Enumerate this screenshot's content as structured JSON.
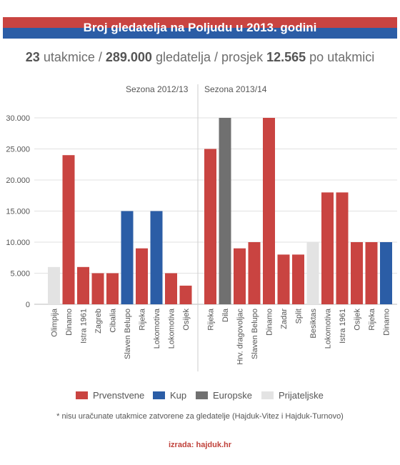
{
  "header": {
    "title": "Broj gledatelja na Poljudu u 2013. godini",
    "stripe_red": "#c94441",
    "stripe_blue": "#2b5da6"
  },
  "summary": {
    "matches": "23",
    "matches_label": "utakmice",
    "spectators": "289.000",
    "spectators_label": "gledatelja",
    "average_label": "prosjek",
    "average": "12.565",
    "per_match_label": "po utakmici"
  },
  "chart_data": {
    "type": "bar",
    "ylim": [
      0,
      30000
    ],
    "y_ticks": [
      "0",
      "5.000",
      "10.000",
      "15.000",
      "20.000",
      "25.000",
      "30.000"
    ],
    "y_tick_values": [
      0,
      5000,
      10000,
      15000,
      20000,
      25000,
      30000
    ],
    "grid": true,
    "seasons": [
      {
        "label": "Sezona 2012/13",
        "bars": [
          {
            "category": "Olimpija",
            "value": 6000,
            "type": "Prijateljske"
          },
          {
            "category": "Dinamo",
            "value": 24000,
            "type": "Prvenstvene"
          },
          {
            "category": "Istra 1961",
            "value": 6000,
            "type": "Prvenstvene"
          },
          {
            "category": "Zagreb",
            "value": 5000,
            "type": "Prvenstvene"
          },
          {
            "category": "Cibalia",
            "value": 5000,
            "type": "Prvenstvene"
          },
          {
            "category": "Slaven Belupo",
            "value": 15000,
            "type": "Kup"
          },
          {
            "category": "Rijeka",
            "value": 9000,
            "type": "Prvenstvene"
          },
          {
            "category": "Lokomotiva",
            "value": 15000,
            "type": "Kup"
          },
          {
            "category": "Lokomotiva",
            "value": 5000,
            "type": "Prvenstvene"
          },
          {
            "category": "Osijek",
            "value": 3000,
            "type": "Prvenstvene"
          }
        ]
      },
      {
        "label": "Sezona 2013/14",
        "bars": [
          {
            "category": "Rijeka",
            "value": 25000,
            "type": "Prvenstvene"
          },
          {
            "category": "Dila",
            "value": 30000,
            "type": "Europske"
          },
          {
            "category": "Hrv. dragovoljac",
            "value": 9000,
            "type": "Prvenstvene"
          },
          {
            "category": "Slaven Belupo",
            "value": 10000,
            "type": "Prvenstvene"
          },
          {
            "category": "Dinamo",
            "value": 30000,
            "type": "Prvenstvene"
          },
          {
            "category": "Zadar",
            "value": 8000,
            "type": "Prvenstvene"
          },
          {
            "category": "Split",
            "value": 8000,
            "type": "Prvenstvene"
          },
          {
            "category": "Besiktas",
            "value": 10000,
            "type": "Prijateljske"
          },
          {
            "category": "Lokomotiva",
            "value": 18000,
            "type": "Prvenstvene"
          },
          {
            "category": "Istra 1961",
            "value": 18000,
            "type": "Prvenstvene"
          },
          {
            "category": "Osijek",
            "value": 10000,
            "type": "Prvenstvene"
          },
          {
            "category": "Rijeka",
            "value": 10000,
            "type": "Prvenstvene"
          },
          {
            "category": "Dinamo",
            "value": 10000,
            "type": "Kup"
          }
        ]
      }
    ],
    "legend_placement": "bottom",
    "legend": [
      {
        "name": "Prvenstvene",
        "color": "#c94441"
      },
      {
        "name": "Kup",
        "color": "#2b5da6"
      },
      {
        "name": "Europske",
        "color": "#707070"
      },
      {
        "name": "Prijateljske",
        "color": "#e3e3e3"
      }
    ]
  },
  "footnote": "* nisu uračunate utakmice zatvorene za gledatelje (Hajduk-Vitez i Hajduk-Turnovo)",
  "credit": "izrada: hajduk.hr"
}
